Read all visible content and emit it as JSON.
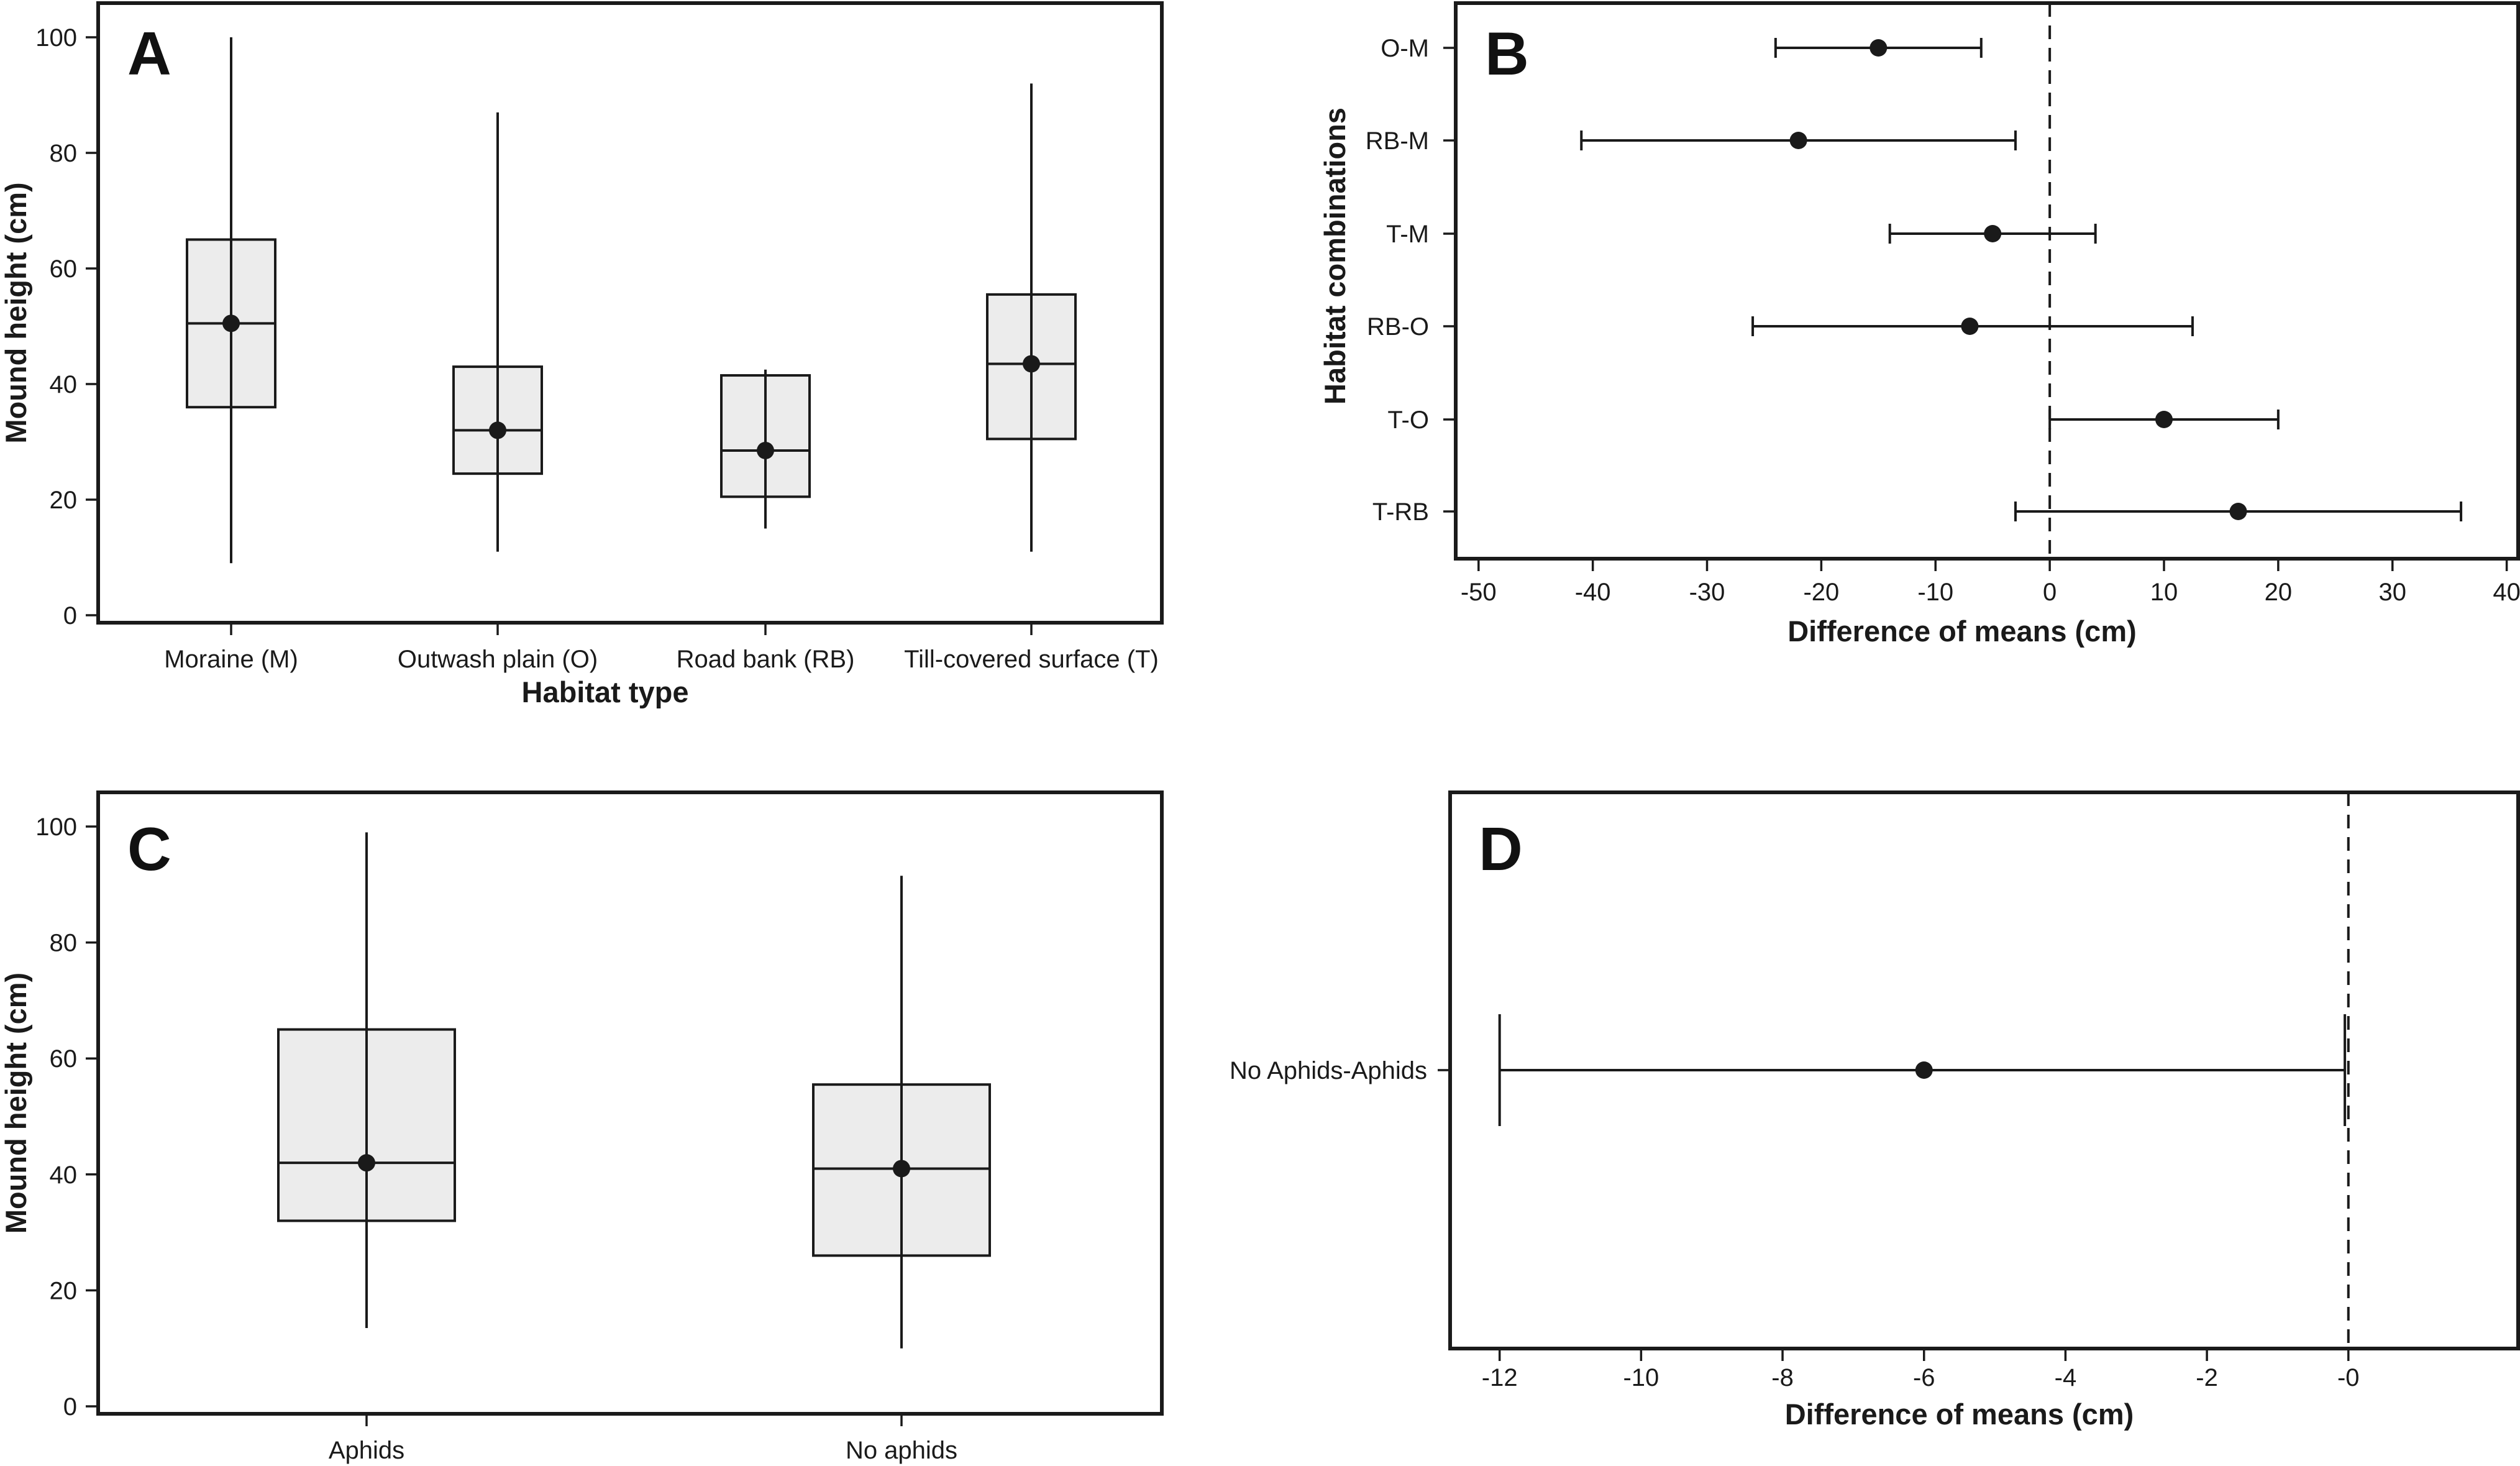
{
  "chart_data": [
    {
      "panel": "A",
      "type": "box",
      "xlabel": "Habitat type",
      "ylabel": "Mound height (cm)",
      "ylim": [
        0,
        105
      ],
      "yticks": [
        0,
        20,
        40,
        60,
        80,
        100
      ],
      "categories": [
        "Moraine (M)",
        "Outwash plain (O)",
        "Road bank (RB)",
        "Till-covered surface (T)"
      ],
      "boxes": [
        {
          "min": 9,
          "q1": 36,
          "median": 50.5,
          "q3": 65,
          "max": 100,
          "mean": 50.5
        },
        {
          "min": 11,
          "q1": 24.5,
          "median": 32,
          "q3": 43,
          "max": 87,
          "mean": 32
        },
        {
          "min": 15,
          "q1": 20.5,
          "median": 28.5,
          "q3": 41.5,
          "max": 42.5,
          "mean": 28.5
        },
        {
          "min": 11,
          "q1": 30.5,
          "median": 43.5,
          "q3": 55.5,
          "max": 92,
          "mean": 43.5
        }
      ]
    },
    {
      "panel": "B",
      "type": "errorbar",
      "xlabel": "Difference of means (cm)",
      "ylabel": "Habitat combinations",
      "xlim": [
        -52,
        41
      ],
      "xticks": [
        -50,
        -40,
        -30,
        -20,
        -10,
        0,
        10,
        20,
        30,
        40
      ],
      "reference_line": 0,
      "categories": [
        "O-M",
        "RB-M",
        "T-M",
        "RB-O",
        "T-O",
        "T-RB"
      ],
      "estimates": [
        {
          "mean": -15,
          "lower": -24,
          "upper": -6
        },
        {
          "mean": -22,
          "lower": -41,
          "upper": -3
        },
        {
          "mean": -5,
          "lower": -14,
          "upper": 4
        },
        {
          "mean": -7,
          "lower": -26,
          "upper": 12.5
        },
        {
          "mean": 10,
          "lower": 0,
          "upper": 20
        },
        {
          "mean": 16.5,
          "lower": -3,
          "upper": 36
        }
      ]
    },
    {
      "panel": "C",
      "type": "box",
      "xlabel": "",
      "ylabel": "Mound height (cm)",
      "ylim": [
        0,
        105
      ],
      "yticks": [
        0,
        20,
        40,
        60,
        80,
        100
      ],
      "categories": [
        "Aphids",
        "No aphids"
      ],
      "boxes": [
        {
          "min": 13.5,
          "q1": 32,
          "median": 42,
          "q3": 65,
          "max": 99,
          "mean": 42
        },
        {
          "min": 10,
          "q1": 26,
          "median": 41,
          "q3": 55.5,
          "max": 91.5,
          "mean": 41
        }
      ]
    },
    {
      "panel": "D",
      "type": "errorbar",
      "xlabel": "Difference of means (cm)",
      "ylabel": "",
      "xlim": [
        -12.7,
        2.4
      ],
      "xticks": [
        -12,
        -10,
        -8,
        -6,
        -4,
        -2,
        0
      ],
      "xtick_labels": [
        "-12",
        "-10",
        "-8",
        "-6",
        "-4",
        "-2",
        "-0"
      ],
      "reference_line": 0,
      "categories": [
        "No Aphids-Aphids"
      ],
      "estimates": [
        {
          "mean": -6,
          "lower": -12,
          "upper": -0.05
        }
      ]
    }
  ]
}
